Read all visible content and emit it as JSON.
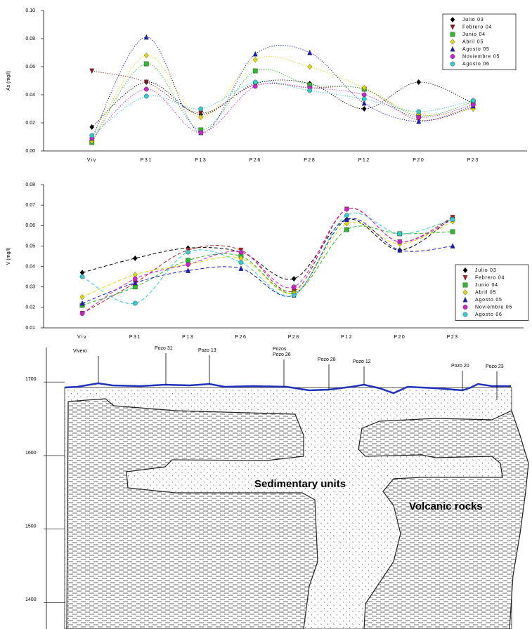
{
  "chart_data": [
    {
      "type": "line",
      "y_label": "As (mg/l)",
      "line_style": "dotted",
      "legend": "upper right",
      "categories": [
        "Viv",
        "P31",
        "P13",
        "P26",
        "P28",
        "P12",
        "P20",
        "P23"
      ],
      "ylim": [
        0,
        0.1
      ],
      "yticks": [
        {
          "value": 0,
          "label": "0.00"
        },
        {
          "value": 0.02,
          "label": "0.02"
        },
        {
          "value": 0.04,
          "label": "0.04"
        },
        {
          "value": 0.06,
          "label": "0.06"
        },
        {
          "value": 0.08,
          "label": "0.08"
        },
        {
          "value": 0.1,
          "label": "0.10"
        }
      ],
      "series": [
        {
          "name": "Julio 03",
          "color": "#000000",
          "marker": "diamond",
          "values": [
            0.017,
            0.049,
            0.026,
            0.048,
            0.048,
            0.03,
            0.049,
            0.034
          ]
        },
        {
          "name": "Febrero 04",
          "color": "#8b1a1a",
          "marker": "triangle-down",
          "values": [
            0.057,
            0.049,
            0.027,
            0.047,
            0.045,
            0.044,
            0.022,
            0.031
          ]
        },
        {
          "name": "Junio 04",
          "color": "#2db82d",
          "marker": "square",
          "values": [
            0.006,
            0.062,
            0.015,
            0.057,
            0.047,
            0.044,
            0.025,
            0.035
          ]
        },
        {
          "name": "Abril 05",
          "color": "#e0d800",
          "marker": "diamond",
          "values": [
            0.007,
            0.068,
            0.024,
            0.065,
            0.06,
            0.045,
            0.026,
            0.03
          ]
        },
        {
          "name": "Agosto 05",
          "color": "#1a1acc",
          "marker": "triangle",
          "values": [
            0.009,
            0.081,
            0.013,
            0.069,
            0.07,
            0.034,
            0.021,
            0.032
          ]
        },
        {
          "name": "Noviembre 05",
          "color": "#cc22cc",
          "marker": "circle",
          "values": [
            0.009,
            0.044,
            0.013,
            0.046,
            0.045,
            0.04,
            0.024,
            0.033
          ]
        },
        {
          "name": "Agosto 06",
          "color": "#33cccc",
          "marker": "circle",
          "values": [
            0.011,
            0.039,
            0.03,
            0.049,
            0.043,
            0.037,
            0.028,
            0.036
          ]
        }
      ]
    },
    {
      "type": "line",
      "y_label": "V (mg/l)",
      "line_style": "dashed",
      "legend": "lower right",
      "categories": [
        "Viv",
        "P31",
        "P13",
        "P26",
        "P28",
        "P12",
        "P20",
        "P23"
      ],
      "ylim": [
        0.01,
        0.08
      ],
      "yticks": [
        {
          "value": 0.01,
          "label": "0.01"
        },
        {
          "value": 0.02,
          "label": "0.02"
        },
        {
          "value": 0.03,
          "label": "0.03"
        },
        {
          "value": 0.04,
          "label": "0.04"
        },
        {
          "value": 0.05,
          "label": "0.05"
        },
        {
          "value": 0.06,
          "label": "0.06"
        },
        {
          "value": 0.07,
          "label": "0.07"
        },
        {
          "value": 0.08,
          "label": "0.08"
        }
      ],
      "series": [
        {
          "name": "Julio 03",
          "color": "#000000",
          "marker": "diamond",
          "values": [
            0.037,
            0.044,
            0.049,
            0.047,
            0.034,
            0.063,
            0.048,
            0.064
          ]
        },
        {
          "name": "Febrero 04",
          "color": "#b22222",
          "marker": "triangle-down",
          "values": [
            0.017,
            0.032,
            0.048,
            0.048,
            0.028,
            0.068,
            0.052,
            0.064
          ]
        },
        {
          "name": "Junio 04",
          "color": "#2db82d",
          "marker": "square",
          "values": [
            0.021,
            0.03,
            0.043,
            0.045,
            0.027,
            0.058,
            0.056,
            0.057
          ]
        },
        {
          "name": "Abril 05",
          "color": "#e0d800",
          "marker": "diamond",
          "values": [
            0.025,
            0.036,
            0.041,
            0.044,
            0.027,
            0.061,
            0.051,
            0.062
          ]
        },
        {
          "name": "Agosto 05",
          "color": "#1a1acc",
          "marker": "triangle",
          "values": [
            0.022,
            0.032,
            0.038,
            0.039,
            0.026,
            0.063,
            0.048,
            0.05
          ]
        },
        {
          "name": "Noviembre 05",
          "color": "#cc22cc",
          "marker": "circle",
          "values": [
            0.017,
            0.034,
            0.041,
            0.047,
            0.03,
            0.068,
            0.052,
            0.063
          ]
        },
        {
          "name": "Agosto 06",
          "color": "#33cccc",
          "marker": "circle",
          "values": [
            0.035,
            0.022,
            0.047,
            0.042,
            0.026,
            0.065,
            0.056,
            0.063
          ]
        }
      ]
    }
  ],
  "cross_section": {
    "ylim": [
      1364,
      1747
    ],
    "yticks": [
      1700,
      1600,
      1500,
      1400
    ],
    "wells": [
      "Vivero",
      "Pozo 31",
      "Pozo 13",
      "Pozos",
      "Pozo 26",
      "Pozo 28",
      "Pozo 12",
      "Pozo 20",
      "Pozo 23"
    ],
    "units": [
      "Sedimentary units",
      "Volcanic rocks"
    ]
  }
}
